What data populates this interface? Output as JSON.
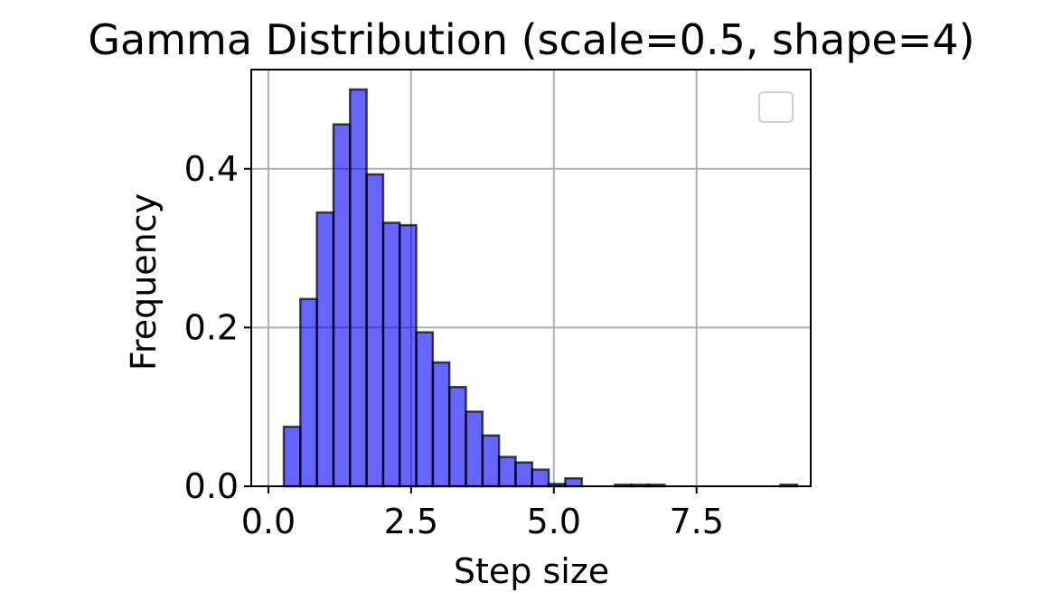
{
  "chart_data": {
    "type": "bar",
    "title": "Gamma Distribution (scale=0.5, shape=4)",
    "xlabel": "Step size",
    "ylabel": "Frequency",
    "xlim": [
      -0.3,
      9.5
    ],
    "ylim": [
      0,
      0.525
    ],
    "x_ticks": [
      0.0,
      2.5,
      5.0,
      7.5
    ],
    "x_tick_labels": [
      "0.0",
      "2.5",
      "5.0",
      "7.5"
    ],
    "y_ticks": [
      0.0,
      0.2,
      0.4
    ],
    "y_tick_labels": [
      "0.0",
      "0.2",
      "0.4"
    ],
    "grid": true,
    "legend": {
      "placement": "top-right",
      "entries": []
    },
    "bar_color": "#0000ff",
    "bar_alpha": 0.6,
    "edge_color": "#000000",
    "bin_width": 0.29,
    "bins": [
      {
        "x0": 0.27,
        "value": 0.075
      },
      {
        "x0": 0.56,
        "value": 0.236
      },
      {
        "x0": 0.85,
        "value": 0.345
      },
      {
        "x0": 1.14,
        "value": 0.456
      },
      {
        "x0": 1.43,
        "value": 0.5
      },
      {
        "x0": 1.72,
        "value": 0.393
      },
      {
        "x0": 2.01,
        "value": 0.332
      },
      {
        "x0": 2.3,
        "value": 0.329
      },
      {
        "x0": 2.59,
        "value": 0.194
      },
      {
        "x0": 2.88,
        "value": 0.156
      },
      {
        "x0": 3.17,
        "value": 0.125
      },
      {
        "x0": 3.46,
        "value": 0.094
      },
      {
        "x0": 3.75,
        "value": 0.064
      },
      {
        "x0": 4.04,
        "value": 0.037
      },
      {
        "x0": 4.33,
        "value": 0.03
      },
      {
        "x0": 4.62,
        "value": 0.021
      },
      {
        "x0": 4.91,
        "value": 0.003
      },
      {
        "x0": 5.2,
        "value": 0.01
      },
      {
        "x0": 6.07,
        "value": 0.002
      },
      {
        "x0": 6.36,
        "value": 0.002
      },
      {
        "x0": 6.65,
        "value": 0.002
      },
      {
        "x0": 8.97,
        "value": 0.002
      }
    ]
  }
}
